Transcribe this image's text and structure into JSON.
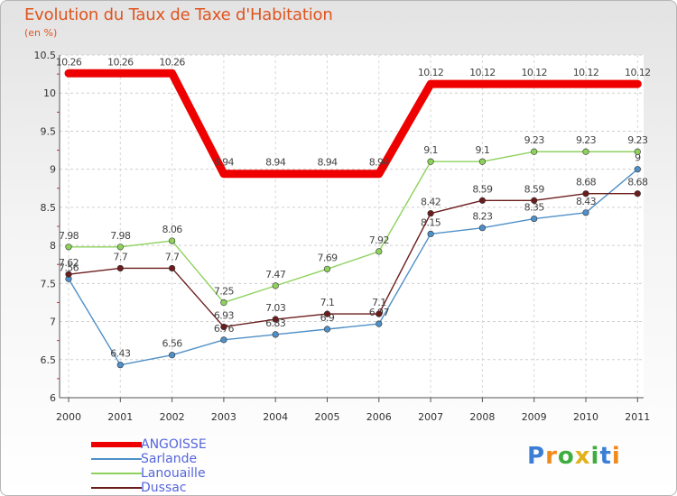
{
  "chart_data": {
    "type": "line",
    "title": "Evolution du Taux de Taxe d'Habitation",
    "subtitle": "(en %)",
    "categories": [
      "2000",
      "2001",
      "2002",
      "2003",
      "2004",
      "2005",
      "2006",
      "2007",
      "2008",
      "2009",
      "2010",
      "2011"
    ],
    "ylim": [
      6,
      10.5
    ],
    "yticks": [
      "6",
      "6.5",
      "7",
      "7.5",
      "8",
      "8.5",
      "9",
      "9.5",
      "10",
      "10.5"
    ],
    "series": [
      {
        "name": "ANGOISSE",
        "color": "#ee0000",
        "values": [
          10.26,
          10.26,
          10.26,
          8.94,
          8.94,
          8.94,
          8.94,
          10.12,
          10.12,
          10.12,
          10.12,
          10.12
        ]
      },
      {
        "name": "Sarlande",
        "color": "#4f90c8",
        "values": [
          7.56,
          6.43,
          6.56,
          6.76,
          6.83,
          6.9,
          6.97,
          8.15,
          8.23,
          8.35,
          8.43,
          9
        ]
      },
      {
        "name": "Lanouaille",
        "color": "#8ed25c",
        "values": [
          7.98,
          7.98,
          8.06,
          7.25,
          7.47,
          7.69,
          7.92,
          9.1,
          9.1,
          9.23,
          9.23,
          9.23
        ]
      },
      {
        "name": "Dussac",
        "color": "#6b1d1d",
        "values": [
          7.62,
          7.7,
          7.7,
          6.93,
          7.03,
          7.1,
          7.1,
          8.42,
          8.59,
          8.59,
          8.68,
          8.68
        ]
      }
    ],
    "grid": true
  },
  "logo": {
    "letters": [
      "P",
      "r",
      "o",
      "x",
      "i",
      "t",
      "i"
    ],
    "colors": [
      "#3a7ed6",
      "#f08a1c",
      "#3fae3f",
      "#e2b21a",
      "#3fae3f",
      "#3a7ed6",
      "#f08a1c"
    ]
  }
}
